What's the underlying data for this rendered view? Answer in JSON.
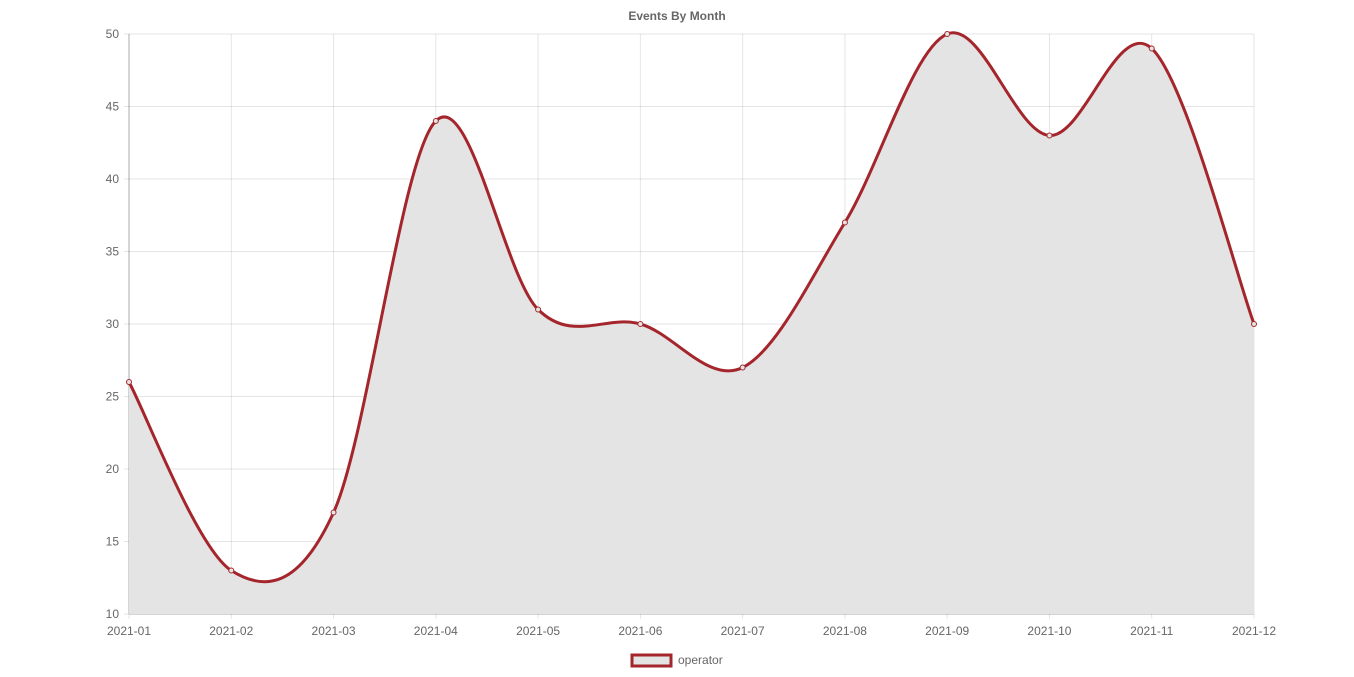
{
  "chart_data": {
    "type": "area",
    "title": "Events By Month",
    "xlabel": "",
    "ylabel": "",
    "categories": [
      "2021-01",
      "2021-02",
      "2021-03",
      "2021-04",
      "2021-05",
      "2021-06",
      "2021-07",
      "2021-08",
      "2021-09",
      "2021-10",
      "2021-11",
      "2021-12"
    ],
    "series": [
      {
        "name": "operator",
        "values": [
          26,
          13,
          17,
          44,
          31,
          30,
          27,
          37,
          50,
          43,
          49,
          30
        ],
        "line_color": "#a4262c",
        "fill_color": "#e4e4e4"
      }
    ],
    "ylim": [
      10,
      50
    ],
    "y_ticks": [
      10,
      15,
      20,
      25,
      30,
      35,
      40,
      45,
      50
    ],
    "grid": true,
    "smooth": true,
    "legend_position": "bottom"
  }
}
